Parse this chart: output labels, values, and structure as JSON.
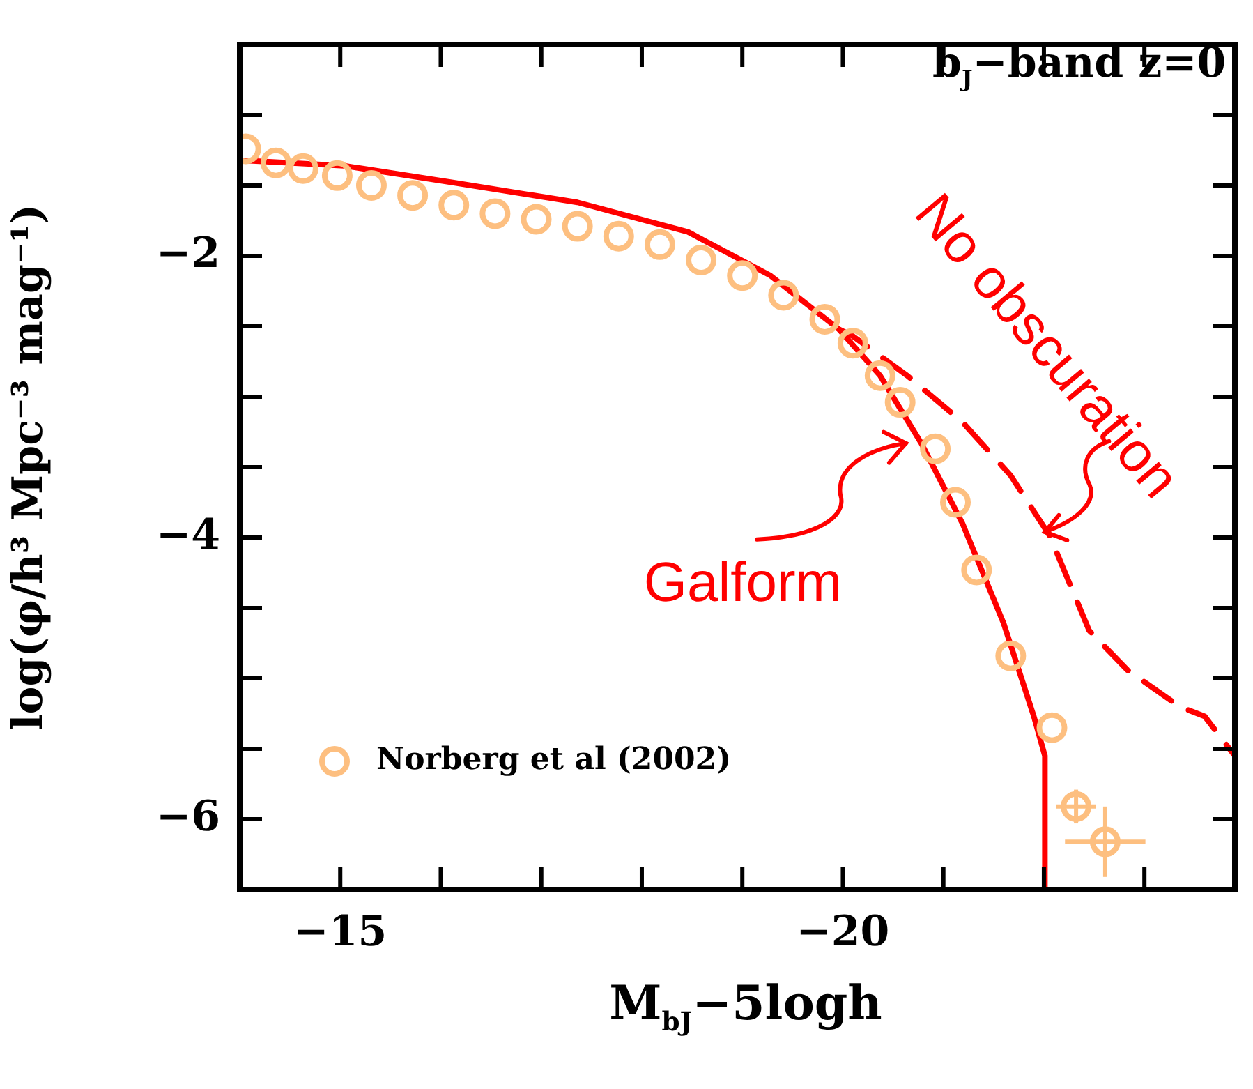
{
  "chart_data": {
    "type": "line",
    "title": "b$_{J}$−band z=0",
    "xlabel": "M$_{bJ}$−5logh",
    "ylabel": "log(φ/h³ Mpc⁻³ mag⁻¹)",
    "xlim": [
      -14,
      -23.9
    ],
    "ylim": [
      -6.5,
      -0.5
    ],
    "xticks": [
      {
        "value": -14,
        "label": null
      },
      {
        "value": -15,
        "label": "−15"
      },
      {
        "value": -16,
        "label": null
      },
      {
        "value": -17,
        "label": null
      },
      {
        "value": -18,
        "label": null
      },
      {
        "value": -19,
        "label": null
      },
      {
        "value": -20,
        "label": "−20"
      },
      {
        "value": -21,
        "label": null
      },
      {
        "value": -22,
        "label": null
      },
      {
        "value": -23,
        "label": null
      }
    ],
    "yticks": [
      {
        "value": -1,
        "label": null
      },
      {
        "value": -1.5,
        "label": null
      },
      {
        "value": -2,
        "label": "−2"
      },
      {
        "value": -2.5,
        "label": null
      },
      {
        "value": -3,
        "label": null
      },
      {
        "value": -3.5,
        "label": null
      },
      {
        "value": -4,
        "label": "−4"
      },
      {
        "value": -4.5,
        "label": null
      },
      {
        "value": -5,
        "label": null
      },
      {
        "value": -5.5,
        "label": null
      },
      {
        "value": -6,
        "label": "−6"
      }
    ],
    "grid": false,
    "legend": "bottom left",
    "series": [
      {
        "type": "scatter",
        "name": "Norberg et al (2002)",
        "color": "#fdbf80",
        "marker": "circle",
        "x": [
          -14.06,
          -14.36,
          -14.63,
          -14.97,
          -15.31,
          -15.72,
          -16.13,
          -16.54,
          -16.95,
          -17.36,
          -17.77,
          -18.18,
          -18.59,
          -19.0,
          -19.41,
          -19.82,
          -20.1,
          -20.37,
          -20.57,
          -20.92,
          -21.12,
          -21.33,
          -21.67,
          -22.08,
          -22.32,
          -22.61
        ],
        "values": [
          -1.24,
          -1.34,
          -1.38,
          -1.43,
          -1.5,
          -1.57,
          -1.64,
          -1.7,
          -1.74,
          -1.79,
          -1.86,
          -1.92,
          -2.03,
          -2.14,
          -2.28,
          -2.45,
          -2.62,
          -2.85,
          -3.04,
          -3.37,
          -3.75,
          -4.23,
          -4.84,
          -5.35,
          -5.91,
          -6.16
        ],
        "errors": [
          null,
          null,
          null,
          null,
          null,
          null,
          null,
          null,
          null,
          null,
          null,
          null,
          null,
          null,
          null,
          null,
          null,
          null,
          null,
          null,
          null,
          null,
          null,
          null,
          0.12,
          0.25
        ],
        "xerrors": [
          null,
          null,
          null,
          null,
          null,
          null,
          null,
          null,
          null,
          null,
          null,
          null,
          null,
          null,
          null,
          null,
          null,
          null,
          null,
          null,
          null,
          null,
          null,
          null,
          0.2,
          0.4
        ]
      },
      {
        "type": "line",
        "color": "#ff0000",
        "line_style": "solid",
        "marker": "none",
        "x": [
          -14,
          -15.04,
          -16.13,
          -17.36,
          -18.46,
          -19.28,
          -19.96,
          -20.37,
          -20.78,
          -21.19,
          -21.6,
          -21.9,
          -22.01,
          -22.01
        ],
        "values": [
          -1.32,
          -1.36,
          -1.48,
          -1.62,
          -1.83,
          -2.14,
          -2.52,
          -2.85,
          -3.33,
          -3.9,
          -4.61,
          -5.27,
          -5.55,
          -6.5
        ]
      },
      {
        "type": "line",
        "color": "#ff0000",
        "line_style": "dashed",
        "marker": "none",
        "x": [
          -19.96,
          -20.1,
          -20.64,
          -21.19,
          -21.67,
          -22.06,
          -22.45,
          -22.83,
          -23.35,
          -23.6,
          -23.9
        ],
        "values": [
          -2.52,
          -2.57,
          -2.85,
          -3.18,
          -3.56,
          -3.99,
          -4.66,
          -4.94,
          -5.2,
          -5.27,
          -5.55
        ]
      }
    ],
    "annotations": [
      {
        "text": "Galform",
        "x": -20.78,
        "y": -3.33
      },
      {
        "text": "No obscuration",
        "x": -22.01,
        "y": -3.96
      }
    ]
  }
}
